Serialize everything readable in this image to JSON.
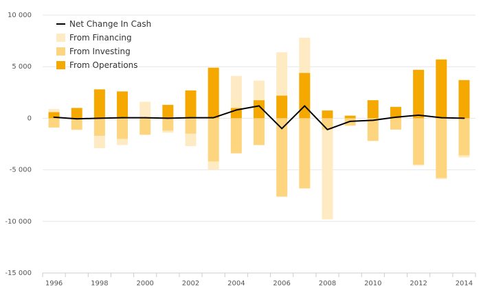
{
  "chart_data": {
    "type": "bar",
    "stacked": true,
    "categories": [
      "1996",
      "1997",
      "1998",
      "1999",
      "2000",
      "2001",
      "2002",
      "2003",
      "2004",
      "2005",
      "2006",
      "2007",
      "2008",
      "2009",
      "2010",
      "2011",
      "2012",
      "2013",
      "2014"
    ],
    "x_tick_labels": [
      "1996",
      "",
      "1998",
      "",
      "2000",
      "",
      "2002",
      "",
      "2004",
      "",
      "2006",
      "",
      "2008",
      "",
      "2010",
      "",
      "2012",
      "",
      "2014"
    ],
    "y_ticks": [
      10000,
      5000,
      0,
      -5000,
      -10000,
      -15000
    ],
    "y_tick_labels": [
      "10 000",
      "5 000",
      "0",
      "-5 000",
      "-10 000",
      "-15 000"
    ],
    "ylim": [
      -15000,
      10000
    ],
    "grid": true,
    "legend_position": "top-left",
    "series": [
      {
        "name": "From Operations",
        "kind": "bar",
        "color": "#f5a800",
        "values": [
          600,
          1000,
          2800,
          2600,
          100,
          1300,
          2700,
          4900,
          1000,
          1750,
          2200,
          4400,
          750,
          250,
          1750,
          1100,
          4700,
          5700,
          3700
        ]
      },
      {
        "name": "From Investing",
        "kind": "bar",
        "color": "#fdd57f",
        "values": [
          -900,
          -1100,
          -1700,
          -2000,
          -1600,
          -1200,
          -1500,
          -4200,
          -3400,
          -2600,
          -7600,
          -6800,
          -1100,
          -700,
          -2200,
          -1100,
          -4500,
          -5800,
          -3600
        ]
      },
      {
        "name": "From Financing",
        "kind": "bar",
        "color": "#feebc4",
        "values": [
          300,
          -50,
          -1200,
          -600,
          1500,
          -200,
          -1200,
          -800,
          3100,
          1900,
          4200,
          3400,
          -8700,
          -50,
          0,
          50,
          -100,
          -100,
          -200
        ]
      },
      {
        "name": "Net Change In Cash",
        "kind": "line",
        "color": "#000000",
        "values": [
          100,
          -50,
          0,
          50,
          50,
          0,
          50,
          50,
          800,
          1200,
          -1000,
          1200,
          -1100,
          -300,
          -200,
          100,
          300,
          50,
          0
        ]
      }
    ]
  }
}
